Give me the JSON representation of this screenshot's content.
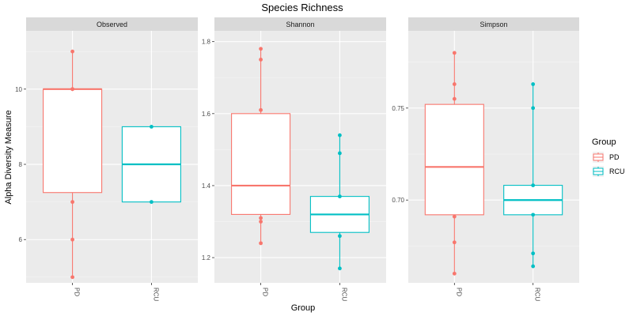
{
  "chart_data": {
    "type": "box",
    "title": "Species Richness",
    "xlabel": "Group",
    "ylabel": "Alpha Diversity Measure",
    "legend": {
      "title": "Group",
      "placement": "right",
      "entries": [
        {
          "name": "PD",
          "color": "#F8766D"
        },
        {
          "name": "RCU",
          "color": "#00BFC4"
        }
      ]
    },
    "categories": [
      "PD",
      "RCU"
    ],
    "grid": true,
    "panels": [
      {
        "name": "Observed",
        "ylim": [
          4.85,
          11.55
        ],
        "yticks": [
          6,
          8,
          10
        ],
        "yticklabels": [
          "6",
          "8",
          "10"
        ],
        "groups": [
          {
            "name": "PD",
            "q1": 7.25,
            "median": 10.0,
            "q3": 10.0,
            "whisker_low": 5.0,
            "whisker_high": 11.0,
            "points": [
              11.0,
              10.0,
              10.0,
              7.0,
              6.0,
              5.0
            ]
          },
          {
            "name": "RCU",
            "q1": 7.0,
            "median": 8.0,
            "q3": 9.0,
            "whisker_low": 7.0,
            "whisker_high": 9.0,
            "points": [
              9.0,
              7.0
            ]
          }
        ]
      },
      {
        "name": "Shannon",
        "ylim": [
          1.13,
          1.83
        ],
        "yticks": [
          1.2,
          1.4,
          1.6,
          1.8
        ],
        "yticklabels": [
          "1.2",
          "1.4",
          "1.6",
          "1.8"
        ],
        "groups": [
          {
            "name": "PD",
            "q1": 1.32,
            "median": 1.4,
            "q3": 1.6,
            "whisker_low": 1.24,
            "whisker_high": 1.78,
            "points": [
              1.78,
              1.75,
              1.61,
              1.31,
              1.3,
              1.24
            ]
          },
          {
            "name": "RCU",
            "q1": 1.27,
            "median": 1.32,
            "q3": 1.37,
            "whisker_low": 1.17,
            "whisker_high": 1.54,
            "points": [
              1.54,
              1.49,
              1.37,
              1.26,
              1.17
            ]
          }
        ]
      },
      {
        "name": "Simpson",
        "ylim": [
          0.655,
          0.792
        ],
        "yticks": [
          0.7,
          0.75
        ],
        "yticklabels": [
          "0.70",
          "0.75"
        ],
        "groups": [
          {
            "name": "PD",
            "q1": 0.692,
            "median": 0.718,
            "q3": 0.752,
            "whisker_low": 0.66,
            "whisker_high": 0.78,
            "points": [
              0.78,
              0.763,
              0.755,
              0.691,
              0.677,
              0.66
            ]
          },
          {
            "name": "RCU",
            "q1": 0.692,
            "median": 0.7,
            "q3": 0.708,
            "whisker_low": 0.664,
            "whisker_high": 0.763,
            "points": [
              0.763,
              0.75,
              0.708,
              0.692,
              0.671,
              0.664
            ]
          }
        ]
      }
    ]
  }
}
